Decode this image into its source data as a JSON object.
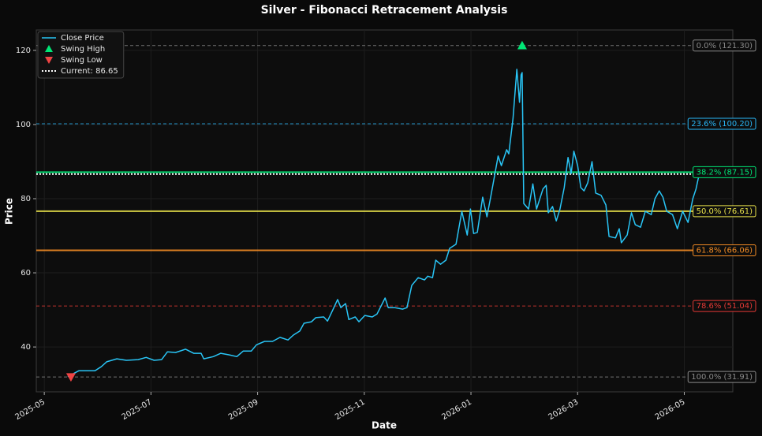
{
  "chart_data": {
    "type": "line",
    "title": "Silver - Fibonacci Retracement Analysis",
    "x_label": "Date",
    "y_label": "Price",
    "grid": true,
    "legend": "upper left",
    "xlim": [
      -0.15,
      12.91
    ],
    "xticks": [
      {
        "value": 0,
        "label": "2025-05"
      },
      {
        "value": 2,
        "label": "2025-07"
      },
      {
        "value": 4,
        "label": "2025-09"
      },
      {
        "value": 6,
        "label": "2025-11"
      },
      {
        "value": 8,
        "label": "2026-01"
      },
      {
        "value": 10,
        "label": "2026-03"
      },
      {
        "value": 12,
        "label": "2026-05"
      }
    ],
    "ylim": [
      27.9,
      125.5
    ],
    "yticks": [
      40,
      60,
      80,
      100,
      120
    ],
    "series": [
      {
        "name": "Close Price",
        "color": "#29c5f6",
        "x": [
          0.44,
          0.65,
          0.95,
          1.07,
          1.17,
          1.36,
          1.54,
          1.76,
          1.91,
          2.06,
          2.2,
          2.31,
          2.46,
          2.65,
          2.8,
          2.94,
          2.99,
          3.17,
          3.31,
          3.46,
          3.61,
          3.73,
          3.88,
          3.98,
          4.13,
          4.28,
          4.42,
          4.57,
          4.67,
          4.79,
          4.87,
          5.01,
          5.09,
          5.24,
          5.31,
          5.41,
          5.5,
          5.56,
          5.65,
          5.71,
          5.83,
          5.9,
          6.01,
          6.15,
          6.24,
          6.39,
          6.45,
          6.57,
          6.72,
          6.8,
          6.89,
          7.01,
          7.13,
          7.19,
          7.28,
          7.34,
          7.43,
          7.53,
          7.6,
          7.72,
          7.83,
          7.93,
          7.99,
          8.05,
          8.12,
          8.22,
          8.3,
          8.37,
          8.45,
          8.51,
          8.57,
          8.67,
          8.71,
          8.79,
          8.86,
          8.91,
          8.94,
          8.96,
          8.99,
          9.08,
          9.16,
          9.23,
          9.35,
          9.41,
          9.45,
          9.53,
          9.6,
          9.67,
          9.75,
          9.82,
          9.88,
          9.93,
          10.0,
          10.06,
          10.12,
          10.19,
          10.27,
          10.34,
          10.44,
          10.53,
          10.59,
          10.71,
          10.78,
          10.82,
          10.93,
          11.01,
          11.08,
          11.18,
          11.27,
          11.38,
          11.45,
          11.53,
          11.6,
          11.67,
          11.78,
          11.87,
          11.97,
          12.07,
          12.16,
          12.22,
          12.28
        ],
        "values": [
          32.0,
          33.6,
          33.6,
          34.7,
          36.0,
          36.8,
          36.4,
          36.6,
          37.2,
          36.4,
          36.6,
          38.7,
          38.5,
          39.4,
          38.3,
          38.3,
          36.8,
          37.4,
          38.3,
          37.9,
          37.4,
          38.9,
          38.9,
          40.6,
          41.5,
          41.5,
          42.6,
          41.9,
          43.2,
          44.3,
          46.4,
          46.8,
          47.9,
          48.1,
          47.0,
          50.0,
          52.8,
          50.6,
          51.7,
          47.4,
          48.1,
          46.8,
          48.5,
          48.1,
          48.9,
          53.2,
          50.6,
          50.6,
          50.2,
          50.6,
          56.6,
          58.7,
          58.1,
          59.1,
          58.7,
          63.4,
          62.3,
          63.4,
          66.6,
          67.7,
          76.6,
          70.2,
          77.2,
          70.6,
          70.9,
          80.4,
          75.1,
          80.4,
          86.8,
          91.5,
          88.9,
          93.2,
          92.1,
          101.7,
          114.9,
          106.0,
          113.4,
          114.0,
          78.7,
          77.2,
          84.0,
          77.2,
          82.6,
          83.6,
          76.2,
          77.9,
          74.0,
          77.2,
          83.0,
          91.1,
          86.8,
          92.8,
          88.9,
          83.0,
          82.1,
          84.3,
          90.0,
          81.5,
          80.9,
          78.3,
          69.8,
          69.4,
          71.9,
          68.1,
          70.2,
          76.2,
          73.0,
          72.3,
          76.6,
          75.7,
          80.0,
          82.1,
          80.4,
          76.6,
          75.7,
          71.9,
          76.6,
          73.6,
          80.0,
          82.6,
          86.6
        ]
      }
    ],
    "markers": [
      {
        "name": "Swing High",
        "color": "#00e676",
        "shape": "up",
        "x": 8.96,
        "value": 121.3
      },
      {
        "name": "Swing Low",
        "color": "#ef4444",
        "shape": "down",
        "x": 0.5,
        "value": 31.91
      }
    ],
    "current": {
      "name": "Current: 86.65",
      "value": 86.65,
      "color": "#ffffff"
    },
    "levels": [
      {
        "label": "0.0% (121.30)",
        "value": 121.3,
        "color": "#8a8a8a",
        "style": "dashed"
      },
      {
        "label": "23.6% (100.20)",
        "value": 100.2,
        "color": "#29b6f6",
        "style": "dashed"
      },
      {
        "label": "38.2% (87.15)",
        "value": 87.15,
        "color": "#00e676",
        "style": "solid"
      },
      {
        "label": "50.0% (76.61)",
        "value": 76.61,
        "color": "#e6e04a",
        "style": "solid"
      },
      {
        "label": "61.8% (66.06)",
        "value": 66.06,
        "color": "#f08a24",
        "style": "solid"
      },
      {
        "label": "78.6% (51.04)",
        "value": 51.04,
        "color": "#e53935",
        "style": "dashed"
      },
      {
        "label": "100.0% (31.91)",
        "value": 31.91,
        "color": "#8a8a8a",
        "style": "dashed"
      }
    ]
  }
}
